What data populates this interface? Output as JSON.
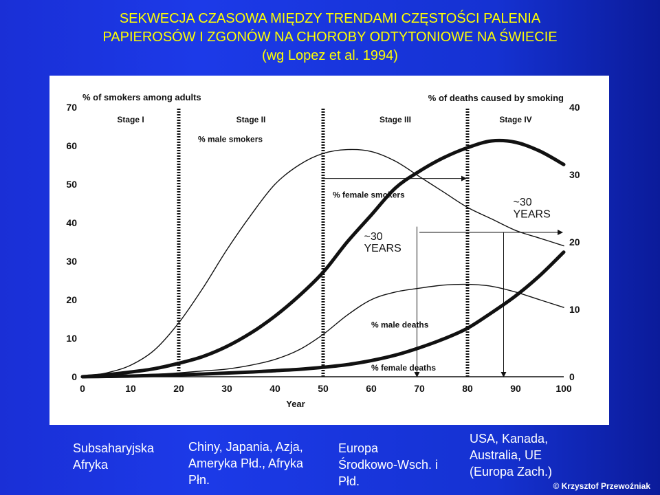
{
  "slide": {
    "title_line1": "SEKWECJA CZASOWA MIĘDZY TRENDAMI CZĘSTOŚCI PALENIA",
    "title_line2": "PAPIEROSÓW I ZGONÓW NA CHOROBY ODTYTONIOWE NA ŚWIECIE",
    "title_line3": "(wg Lopez et al. 1994)"
  },
  "regions": {
    "stage_1": [
      "Subsaharyjska",
      "Afryka"
    ],
    "stage_2": [
      "Chiny, Japania, Azja,",
      "Ameryka Płd., Afryka",
      "Płn."
    ],
    "stage_3": [
      "Europa",
      "Środkowo-Wsch. i",
      "Płd."
    ],
    "stage_4": [
      "USA, Kanada,",
      "Australia, UE",
      "(Europa Zach.)"
    ]
  },
  "copyright": "© Krzysztof Przewoźniak",
  "colors": {
    "background": "#1a2fd6",
    "title": "#ffff00",
    "region_text": "#ffffff",
    "chart_ink": "#111111"
  },
  "chart_data": {
    "type": "line",
    "x": [
      0,
      5,
      10,
      15,
      20,
      25,
      30,
      35,
      40,
      45,
      50,
      55,
      60,
      65,
      70,
      75,
      80,
      85,
      90,
      95,
      100
    ],
    "xlabel": "Year",
    "xticks": [
      "0",
      "10",
      "20",
      "30",
      "40",
      "50",
      "60",
      "70",
      "80",
      "90",
      "100"
    ],
    "xlim": [
      0,
      100
    ],
    "ylabel_left": "% of smokers among adults",
    "ylim_left": [
      0,
      70
    ],
    "yticks_left": [
      "0",
      "10",
      "20",
      "30",
      "40",
      "50",
      "60",
      "70"
    ],
    "ylabel_right": "% of deaths caused by smoking",
    "ylim_right": [
      0,
      40
    ],
    "yticks_right": [
      "0",
      "10",
      "20",
      "30",
      "40"
    ],
    "grid": false,
    "stages": [
      {
        "label": "Stage I",
        "end_x": 20
      },
      {
        "label": "Stage II",
        "end_x": 50
      },
      {
        "label": "Stage III",
        "end_x": 80
      },
      {
        "label": "Stage IV",
        "end_x": 100
      }
    ],
    "series": [
      {
        "name": "% male smokers",
        "axis": "left",
        "weight": "thin",
        "values": [
          0,
          1,
          3,
          7,
          14,
          23,
          33,
          42,
          50,
          55,
          58,
          59,
          58.5,
          56,
          52,
          48,
          44,
          41,
          38,
          36,
          34
        ]
      },
      {
        "name": "% female smokers",
        "axis": "left",
        "weight": "thin",
        "values": [
          0,
          0,
          0.3,
          0.6,
          1,
          1.5,
          2,
          3,
          4.5,
          7,
          11,
          16,
          20,
          22,
          23,
          23.8,
          24,
          23.5,
          22,
          20,
          18
        ]
      },
      {
        "name": "% male deaths",
        "axis": "right",
        "weight": "bold",
        "values": [
          0,
          0.3,
          0.7,
          1.2,
          2,
          3,
          4.5,
          6.5,
          9,
          12,
          15.5,
          20,
          24,
          28,
          30.5,
          32.5,
          34,
          35,
          34.8,
          33.5,
          31.5
        ]
      },
      {
        "name": "% female deaths",
        "axis": "right",
        "weight": "bold",
        "values": [
          0,
          0.05,
          0.1,
          0.2,
          0.3,
          0.4,
          0.55,
          0.7,
          0.9,
          1.1,
          1.4,
          1.8,
          2.4,
          3.2,
          4.3,
          5.6,
          7.2,
          9.5,
          12,
          15,
          18.5
        ]
      }
    ],
    "annotations": [
      {
        "text_lines": [
          "~30",
          "YEARS"
        ],
        "gap_from_x": 50,
        "gap_to_x": 80
      },
      {
        "text_lines": [
          "~30",
          "YEARS"
        ],
        "gap_from_x": 70,
        "gap_to_x": 100
      }
    ]
  }
}
